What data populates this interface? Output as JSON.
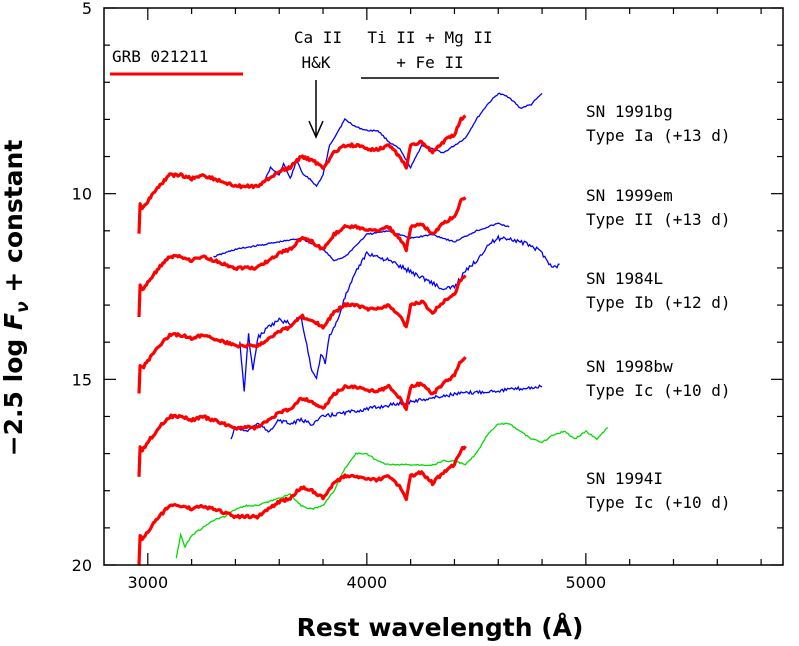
{
  "chart_data": {
    "type": "line",
    "xlabel": "Rest wavelength (Å)",
    "ylabel_parts": [
      "−2.5 log ",
      "F",
      "ν",
      " + constant"
    ],
    "xlim": [
      2800,
      5900
    ],
    "ylim": [
      20,
      5
    ],
    "x_ticks": [
      3000,
      4000,
      5000
    ],
    "x_tick_labels": [
      "3000",
      "4000",
      "5000"
    ],
    "y_ticks": [
      5,
      10,
      15,
      20
    ],
    "y_tick_labels": [
      "5",
      "10",
      "15",
      "20"
    ],
    "grid": false,
    "colors": {
      "grb": "#ff0000",
      "sn": "#0000ff",
      "sn1994I": "#00dd00",
      "axes": "#000000"
    },
    "legend": {
      "label": "GRB 021211",
      "color": "#ff0000"
    },
    "annotations": {
      "caii_line1": "Ca II",
      "caii_line2": "H&K",
      "tii_line1": "Ti II + Mg II",
      "tii_line2": "+ Fe II"
    },
    "sn_labels": [
      {
        "name": "SN 1991bg",
        "type": "Type Ia (+13 d)"
      },
      {
        "name": "SN 1999em",
        "type": "Type II (+13 d)"
      },
      {
        "name": "SN 1984L",
        "type": "Type Ib (+12 d)"
      },
      {
        "name": "SN 1998bw",
        "type": "Type Ic (+10 d)"
      },
      {
        "name": "SN 1994I",
        "type": "Type Ic (+10 d)"
      }
    ],
    "series": [
      {
        "name": "GRB 021211",
        "color": "#ff0000",
        "x": [
          2960,
          2965,
          2975,
          3000,
          3050,
          3100,
          3150,
          3200,
          3250,
          3300,
          3350,
          3400,
          3450,
          3500,
          3550,
          3600,
          3650,
          3700,
          3750,
          3800,
          3850,
          3900,
          3950,
          4000,
          4050,
          4100,
          4150,
          4180,
          4200,
          4250,
          4300,
          4350,
          4400,
          4430,
          4450
        ],
        "y": [
          11.1,
          10.3,
          10.4,
          10.2,
          9.8,
          9.5,
          9.5,
          9.6,
          9.5,
          9.6,
          9.7,
          9.8,
          9.8,
          9.8,
          9.6,
          9.4,
          9.3,
          9.0,
          9.1,
          9.3,
          8.9,
          8.7,
          8.7,
          8.8,
          8.8,
          8.7,
          9.0,
          9.3,
          8.7,
          8.6,
          8.9,
          8.6,
          8.4,
          8.0,
          7.9
        ]
      },
      {
        "name": "SN 1991bg",
        "color": "#0000ff",
        "x": [
          3530,
          3560,
          3600,
          3620,
          3650,
          3680,
          3710,
          3740,
          3770,
          3800,
          3830,
          3860,
          3900,
          3950,
          4000,
          4050,
          4100,
          4150,
          4200,
          4250,
          4300,
          4350,
          4400,
          4450,
          4500,
          4550,
          4600,
          4650,
          4700,
          4750,
          4800
        ],
        "y": [
          9.7,
          9.3,
          9.5,
          9.2,
          9.6,
          9.1,
          9.5,
          9.6,
          9.8,
          9.5,
          8.7,
          8.4,
          8.0,
          8.2,
          8.3,
          8.3,
          8.6,
          8.8,
          9.3,
          8.7,
          8.8,
          8.9,
          8.7,
          8.5,
          8.0,
          7.6,
          7.3,
          7.4,
          7.7,
          7.6,
          7.3
        ]
      },
      {
        "name": "SN 1999em",
        "color": "#0000ff",
        "x": [
          3300,
          3400,
          3500,
          3600,
          3700,
          3800,
          3850,
          3900,
          3950,
          4000,
          4100,
          4200,
          4300,
          4400,
          4500,
          4600,
          4650
        ],
        "y": [
          11.7,
          11.5,
          11.4,
          11.3,
          11.2,
          11.5,
          11.8,
          11.7,
          11.4,
          11.1,
          11.0,
          11.2,
          11.1,
          11.3,
          11.0,
          10.8,
          10.9
        ]
      },
      {
        "name": "SN 1984L",
        "color": "#0000ff",
        "x": [
          3420,
          3440,
          3460,
          3480,
          3500,
          3550,
          3600,
          3650,
          3700,
          3720,
          3750,
          3770,
          3790,
          3810,
          3830,
          3860,
          3900,
          3930,
          3960,
          4000,
          4100,
          4200,
          4300,
          4350,
          4400,
          4450,
          4500,
          4550,
          4600,
          4650,
          4700,
          4750,
          4800,
          4850,
          4880
        ],
        "y": [
          14.0,
          15.3,
          13.8,
          14.8,
          13.9,
          13.6,
          13.4,
          13.5,
          13.3,
          13.9,
          14.8,
          15.0,
          14.3,
          14.6,
          13.8,
          13.5,
          12.8,
          12.4,
          12.0,
          11.6,
          11.8,
          12.1,
          12.4,
          12.6,
          12.5,
          12.1,
          11.8,
          11.4,
          11.2,
          11.2,
          11.3,
          11.4,
          11.6,
          12.0,
          11.9
        ]
      },
      {
        "name": "SN 1998bw",
        "color": "#0000ff",
        "x": [
          3380,
          3400,
          3450,
          3500,
          3550,
          3600,
          3650,
          3700,
          3750,
          3800,
          3900,
          4000,
          4200,
          4400,
          4600,
          4800
        ],
        "y": [
          16.6,
          16.3,
          16.4,
          16.2,
          16.4,
          16.1,
          16.2,
          16.1,
          16.2,
          16.0,
          15.9,
          15.8,
          15.6,
          15.4,
          15.3,
          15.2
        ]
      },
      {
        "name": "SN 1994I",
        "color": "#00dd00",
        "x": [
          3130,
          3150,
          3170,
          3200,
          3250,
          3300,
          3350,
          3400,
          3450,
          3500,
          3550,
          3600,
          3650,
          3700,
          3750,
          3800,
          3850,
          3900,
          3950,
          4000,
          4050,
          4100,
          4150,
          4200,
          4250,
          4300,
          4350,
          4400,
          4450,
          4500,
          4550,
          4600,
          4650,
          4700,
          4750,
          4800,
          4850,
          4900,
          4950,
          5000,
          5050,
          5100
        ],
        "y": [
          19.8,
          19.2,
          19.5,
          19.2,
          19.0,
          18.8,
          18.7,
          18.5,
          18.4,
          18.4,
          18.3,
          18.2,
          18.1,
          18.4,
          18.5,
          18.4,
          18.0,
          17.4,
          17.0,
          17.0,
          17.2,
          17.3,
          17.3,
          17.3,
          17.3,
          17.3,
          17.2,
          17.2,
          17.3,
          17.0,
          16.5,
          16.2,
          16.2,
          16.4,
          16.6,
          16.7,
          16.5,
          16.4,
          16.6,
          16.4,
          16.6,
          16.3
        ]
      }
    ],
    "grb_offsets": [
      0,
      2.2,
      4.3,
      6.5,
      8.9
    ]
  }
}
